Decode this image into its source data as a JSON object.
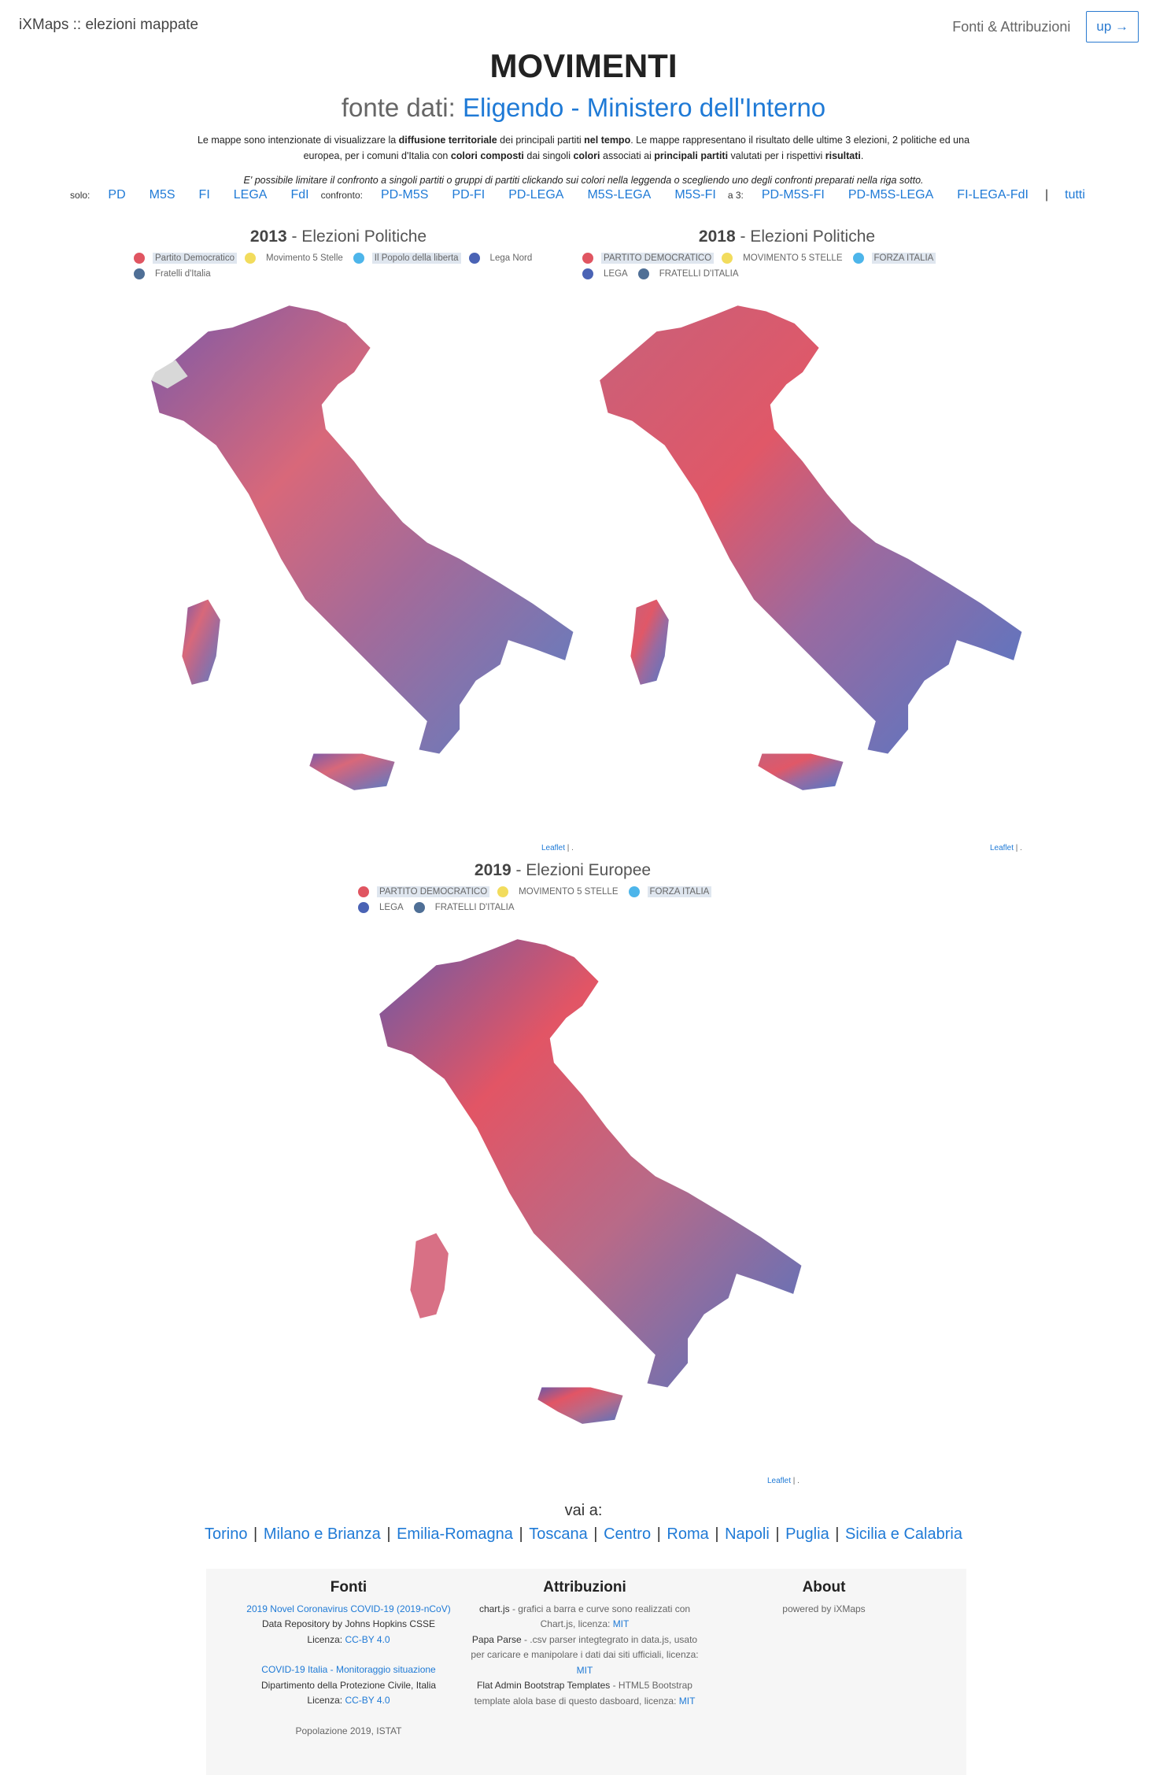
{
  "header": {
    "brand": "iXMaps :: elezioni mappate",
    "nav_link": "Fonti & Attribuzioni",
    "up_button": "up →"
  },
  "title": "MOVIMENTI",
  "subtitle": {
    "prefix": "fonte dati:",
    "link": "Eligendo - Ministero dell'Interno"
  },
  "intro": {
    "t1": "Le mappe sono intenzionate di visualizzare la ",
    "b1": "diffusione territoriale",
    "t2": " dei principali partiti ",
    "b2": "nel tempo",
    "t3": ". Le mappe rappresentano il risultato delle ultime 3 elezioni, 2 politiche ed una europea, per i comuni d'Italia con ",
    "b3": "colori composti",
    "t4": " dai singoli ",
    "b4": "colori",
    "t5": " associati ai ",
    "b5": "principali partiti",
    "t6": " valutati per i rispettivi ",
    "b6": "risultati",
    "t7": "."
  },
  "note": "E' possibile limitare il confronto a singoli partiti o gruppi di partiti clickando sui colori nella leggenda o scegliendo uno degli confronti preparati nella riga sotto.",
  "filters": {
    "solo_label": "solo:",
    "solo": [
      "PD",
      "M5S",
      "FI",
      "LEGA",
      "FdI"
    ],
    "confronto_label": "confronto:",
    "confronto": [
      "PD-M5S",
      "PD-FI",
      "PD-LEGA",
      "M5S-LEGA",
      "M5S-FI"
    ],
    "a3_label": "a 3:",
    "a3": [
      "PD-M5S-FI",
      "PD-M5S-LEGA",
      "FI-LEGA-FdI"
    ],
    "separator": "|",
    "all": "tutti"
  },
  "maps": [
    {
      "year": "2013",
      "label": "- Elezioni Politiche",
      "legend": [
        {
          "name": "Partito Democratico",
          "color": "#e05561",
          "highlighted": true
        },
        {
          "name": "Movimento 5 Stelle",
          "color": "#f2dc5d",
          "highlighted": false
        },
        {
          "name": "Il Popolo della liberta",
          "color": "#4db5ea",
          "highlighted": true
        },
        {
          "name": "Lega Nord",
          "color": "#4a63b5",
          "highlighted": false
        },
        {
          "name": "Fratelli d'Italia",
          "color": "#4f6f96",
          "highlighted": false
        }
      ]
    },
    {
      "year": "2018",
      "label": "- Elezioni Politiche",
      "legend": [
        {
          "name": "PARTITO DEMOCRATICO",
          "color": "#e05561",
          "highlighted": true
        },
        {
          "name": "MOVIMENTO 5 STELLE",
          "color": "#f2dc5d",
          "highlighted": false
        },
        {
          "name": "FORZA ITALIA",
          "color": "#4db5ea",
          "highlighted": true
        },
        {
          "name": "LEGA",
          "color": "#4a63b5",
          "highlighted": false
        },
        {
          "name": "FRATELLI D'ITALIA",
          "color": "#4f6f96",
          "highlighted": false
        }
      ]
    },
    {
      "year": "2019",
      "label": "- Elezioni Europee",
      "legend": [
        {
          "name": "PARTITO DEMOCRATICO",
          "color": "#e05561",
          "highlighted": true
        },
        {
          "name": "MOVIMENTO 5 STELLE",
          "color": "#f2dc5d",
          "highlighted": false
        },
        {
          "name": "FORZA ITALIA",
          "color": "#4db5ea",
          "highlighted": true
        },
        {
          "name": "LEGA",
          "color": "#4a63b5",
          "highlighted": false
        },
        {
          "name": "FRATELLI D'ITALIA",
          "color": "#4f6f96",
          "highlighted": false
        }
      ]
    }
  ],
  "attribution": {
    "link": "Leaflet",
    "suffix": " | ."
  },
  "vai_a": "vai a:",
  "cities": [
    "Torino",
    "Milano e Brianza",
    "Emilia-Romagna",
    "Toscana",
    "Centro",
    "Roma",
    "Napoli",
    "Puglia",
    "Sicilia e Calabria"
  ],
  "footer": {
    "fonti": {
      "title": "Fonti",
      "link1": "2019 Novel Coronavirus COVID-19 (2019-nCoV)",
      "line1b": "Data Repository by Johns Hopkins CSSE",
      "lic_prefix": "Licenza: ",
      "lic1": "CC-BY 4.0",
      "link2": "COVID-19 Italia - Monitoraggio situazione",
      "line2b": "Dipartimento della Protezione Civile, Italia",
      "lic2": "CC-BY 4.0",
      "pop": "Popolazione 2019, ISTAT"
    },
    "attribuzioni": {
      "title": "Attribuzioni",
      "c_name": "chart.js",
      "c_desc": " - grafici a barra e curve sono realizzati con Chart.js, licenza: ",
      "c_lic": "MIT",
      "p_name": "Papa Parse",
      "p_desc": " - .csv parser integtegrato in data.js, usato per caricare e manipolare i dati dai siti ufficiali, licenza: ",
      "p_lic": "MIT",
      "f_name": "Flat Admin Bootstrap Templates",
      "f_desc": " - HTML5 Bootstrap template alola base di questo dasboard, licenza: ",
      "f_lic": "MIT"
    },
    "about": {
      "title": "About",
      "text": "powered by iXMaps"
    }
  }
}
